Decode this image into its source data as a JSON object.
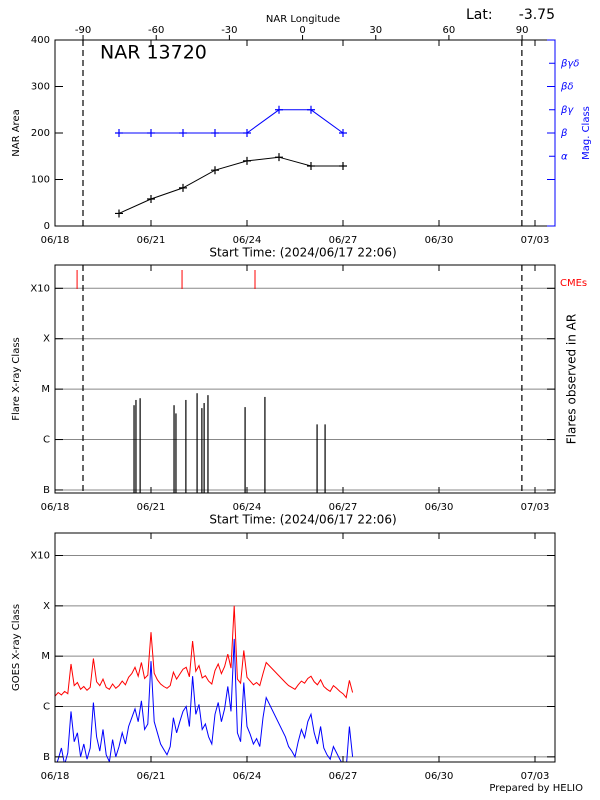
{
  "chart_data": [
    {
      "type": "line",
      "title": "NAR 13720",
      "subtitle": "Start Time: (2024/06/17 22:06)",
      "x2label": "NAR Longitude",
      "lat_label": "Lat:",
      "lat_value": -3.75,
      "ylabel": "NAR Area",
      "y2label": "Mag. Class",
      "y2color": "#0000ff",
      "marker": "+",
      "xlim": [
        0,
        15.625
      ],
      "xticks": [
        {
          "value": 0,
          "label": "06/18"
        },
        {
          "value": 3,
          "label": "06/21"
        },
        {
          "value": 6,
          "label": "06/24"
        },
        {
          "value": 9,
          "label": "06/27"
        },
        {
          "value": 12,
          "label": "06/30"
        },
        {
          "value": 15,
          "label": "07/03"
        }
      ],
      "x2lim": [
        -101.5,
        103.5
      ],
      "x2ticks": [
        -90,
        -60,
        -30,
        0,
        30,
        60,
        90
      ],
      "limb_x": [
        0.875,
        14.59
      ],
      "ylim": [
        0,
        400
      ],
      "yticks": [
        0,
        100,
        200,
        300,
        400
      ],
      "y2lim": [
        0,
        8
      ],
      "y2ticks": [
        {
          "value": 3,
          "label": "α"
        },
        {
          "value": 4,
          "label": "β"
        },
        {
          "value": 5,
          "label": "βγ"
        },
        {
          "value": 6,
          "label": "βδ"
        },
        {
          "value": 7,
          "label": "βγδ"
        }
      ],
      "grid": false,
      "series": [
        {
          "color": "#000000",
          "x": [
            2,
            3,
            4,
            5,
            6,
            7,
            8,
            9
          ],
          "values": [
            27,
            58,
            82,
            120,
            140,
            148,
            129,
            129
          ]
        },
        {
          "color": "#0000ff",
          "axis": "y2",
          "x": [
            2,
            3,
            4,
            5,
            6,
            7,
            8,
            9
          ],
          "values": [
            4,
            4,
            4,
            4,
            4,
            5,
            5,
            4
          ]
        }
      ]
    },
    {
      "type": "stem",
      "subtitle": "Start Time: (2024/06/17 22:06)",
      "ylabel": "Flare X-ray Class",
      "y2label": "Flares observed in AR",
      "log": true,
      "grid": true,
      "xlim": [
        0,
        15.625
      ],
      "xticks": [
        {
          "value": 0,
          "label": "06/18"
        },
        {
          "value": 3,
          "label": "06/21"
        },
        {
          "value": 6,
          "label": "06/24"
        },
        {
          "value": 9,
          "label": "06/27"
        },
        {
          "value": 12,
          "label": "06/30"
        },
        {
          "value": 15,
          "label": "07/03"
        }
      ],
      "limb_x": [
        0.875,
        14.59
      ],
      "ylim": [
        8.7e-08,
        0.0029
      ],
      "yticks": [
        {
          "value": 1e-07,
          "label": "B"
        },
        {
          "value": 1e-06,
          "label": "C"
        },
        {
          "value": 1e-05,
          "label": "M"
        },
        {
          "value": 0.0001,
          "label": "X"
        },
        {
          "value": 0.001,
          "label": "X10"
        }
      ],
      "series": [
        {
          "color": "#000000",
          "x": [
            2.47,
            2.53,
            2.66,
            3.72,
            3.78,
            4.09,
            4.44,
            4.59,
            4.66,
            4.78,
            5.94,
            6.56,
            8.19,
            8.44
          ],
          "values": [
            4.8e-06,
            6.1e-06,
            6.6e-06,
            4.8e-06,
            3.3e-06,
            6.1e-06,
            8.3e-06,
            4.2e-06,
            5.3e-06,
            7.6e-06,
            4.4e-06,
            7e-06,
            2e-06,
            2e-06
          ]
        }
      ],
      "cmes": {
        "name": "CMEs",
        "color": "#ff0000",
        "x": [
          0.69,
          3.97,
          6.25
        ]
      }
    },
    {
      "type": "line",
      "ylabel": "GOES X-ray Class",
      "footer": "Prepared by HELIO",
      "log": true,
      "grid": true,
      "xlim": [
        0,
        15.625
      ],
      "xticks": [
        {
          "value": 0,
          "label": "06/18"
        },
        {
          "value": 3,
          "label": "06/21"
        },
        {
          "value": 6,
          "label": "06/24"
        },
        {
          "value": 9,
          "label": "06/27"
        },
        {
          "value": 12,
          "label": "06/30"
        },
        {
          "value": 15,
          "label": "07/03"
        }
      ],
      "ylim": [
        7.9e-08,
        0.0028
      ],
      "yticks": [
        {
          "value": 1e-07,
          "label": "B"
        },
        {
          "value": 1e-06,
          "label": "C"
        },
        {
          "value": 1e-05,
          "label": "M"
        },
        {
          "value": 0.0001,
          "label": "X"
        },
        {
          "value": 0.001,
          "label": "X10"
        }
      ],
      "series": [
        {
          "color": "#0000ff",
          "x": [
            0.0,
            0.1,
            0.2,
            0.3,
            0.4,
            0.5,
            0.6,
            0.7,
            0.8,
            0.9,
            1.0,
            1.1,
            1.2,
            1.3,
            1.4,
            1.5,
            1.6,
            1.7,
            1.8,
            1.9,
            2.0,
            2.1,
            2.2,
            2.3,
            2.4,
            2.5,
            2.6,
            2.7,
            2.8,
            2.9,
            3.0,
            3.1,
            3.2,
            3.3,
            3.4,
            3.5,
            3.6,
            3.7,
            3.8,
            3.9,
            4.0,
            4.1,
            4.2,
            4.3,
            4.4,
            4.5,
            4.6,
            4.7,
            4.8,
            4.9,
            5.0,
            5.1,
            5.2,
            5.3,
            5.4,
            5.5,
            5.6,
            5.7,
            5.8,
            5.9,
            6.0,
            6.1,
            6.2,
            6.3,
            6.4,
            6.5,
            6.6,
            7.2,
            7.3,
            7.4,
            7.5,
            7.6,
            7.7,
            7.8,
            7.9,
            8.0,
            8.1,
            8.2,
            8.3,
            8.4,
            8.5,
            8.6,
            8.7,
            8.8,
            8.9,
            9.0,
            9.1,
            9.2,
            9.3
          ],
          "values": [
            6e-08,
            9e-08,
            1.5e-07,
            7e-08,
            1.2e-07,
            8e-07,
            2e-07,
            3e-07,
            1e-07,
            1.8e-07,
            9e-08,
            1.5e-07,
            1.2e-06,
            2.5e-07,
            1.3e-07,
            3.5e-07,
            1.1e-07,
            8e-08,
            2.2e-07,
            1e-07,
            1.6e-07,
            3e-07,
            1.8e-07,
            4e-07,
            6e-07,
            9e-07,
            5e-07,
            1.3e-06,
            3.5e-07,
            4.5e-07,
            8e-06,
            5e-07,
            3e-07,
            1.8e-07,
            1.4e-07,
            1.1e-07,
            1.6e-07,
            6e-07,
            3e-07,
            5e-07,
            8e-07,
            1e-06,
            4e-07,
            4e-06,
            7e-07,
            1.1e-06,
            3.5e-07,
            4.5e-07,
            2.5e-07,
            1.8e-07,
            7e-07,
            1.2e-06,
            5e-07,
            9e-07,
            2.5e-06,
            8e-07,
            2.2e-05,
            3e-07,
            2e-07,
            3e-06,
            4e-07,
            2.8e-07,
            1.8e-07,
            2.3e-07,
            1.6e-07,
            6e-07,
            1.5e-06,
            2.5e-07,
            1.6e-07,
            1.3e-07,
            1e-07,
            2e-07,
            3.5e-07,
            2.4e-07,
            5e-07,
            7e-07,
            3e-07,
            1.8e-07,
            4e-07,
            1.5e-07,
            1.1e-07,
            9e-08,
            1.6e-07,
            1.2e-07,
            9e-08,
            7e-08,
            6e-08,
            4e-07,
            1e-07
          ]
        },
        {
          "color": "#ff0000",
          "x": [
            0.0,
            0.1,
            0.2,
            0.3,
            0.4,
            0.5,
            0.6,
            0.7,
            0.8,
            0.9,
            1.0,
            1.1,
            1.2,
            1.3,
            1.4,
            1.5,
            1.6,
            1.7,
            1.8,
            1.9,
            2.0,
            2.1,
            2.2,
            2.3,
            2.4,
            2.5,
            2.6,
            2.7,
            2.8,
            2.9,
            3.0,
            3.1,
            3.2,
            3.3,
            3.4,
            3.5,
            3.6,
            3.7,
            3.8,
            3.9,
            4.0,
            4.1,
            4.2,
            4.3,
            4.4,
            4.5,
            4.6,
            4.7,
            4.8,
            4.9,
            5.0,
            5.1,
            5.2,
            5.3,
            5.4,
            5.5,
            5.6,
            5.7,
            5.8,
            5.9,
            6.0,
            6.1,
            6.2,
            6.3,
            6.4,
            6.5,
            6.6,
            7.2,
            7.3,
            7.4,
            7.5,
            7.6,
            7.7,
            7.8,
            7.9,
            8.0,
            8.1,
            8.2,
            8.3,
            8.4,
            8.5,
            8.6,
            8.7,
            8.8,
            8.9,
            9.0,
            9.1,
            9.2,
            9.3
          ],
          "values": [
            1.6e-06,
            1.9e-06,
            1.7e-06,
            2e-06,
            1.8e-06,
            7e-06,
            2.6e-06,
            3e-06,
            2.2e-06,
            2.5e-06,
            2.1e-06,
            2.4e-06,
            9e-06,
            3.1e-06,
            2.6e-06,
            3.5e-06,
            2.4e-06,
            2.2e-06,
            2.8e-06,
            2.3e-06,
            2.6e-06,
            3.2e-06,
            2.7e-06,
            3.8e-06,
            4.5e-06,
            6e-06,
            4e-06,
            7.5e-06,
            3.6e-06,
            4.2e-06,
            3e-05,
            4.6e-06,
            3.4e-06,
            2.8e-06,
            2.5e-06,
            2.3e-06,
            2.6e-06,
            4.8e-06,
            3.5e-06,
            4.4e-06,
            5.5e-06,
            6e-06,
            3.9e-06,
            2e-05,
            5e-06,
            6.5e-06,
            3.7e-06,
            4.1e-06,
            3.2e-06,
            2.8e-06,
            5.2e-06,
            7e-06,
            4.5e-06,
            6.2e-06,
            1.1e-05,
            5.8e-06,
            0.0001,
            3.5e-06,
            2.9e-06,
            1.3e-05,
            3.8e-06,
            3.2e-06,
            2.7e-06,
            3e-06,
            2.6e-06,
            4.5e-06,
            7.5e-06,
            3e-06,
            2.6e-06,
            2.4e-06,
            2.2e-06,
            2.7e-06,
            3.2e-06,
            2.9e-06,
            3.6e-06,
            4e-06,
            3.1e-06,
            2.7e-06,
            3.4e-06,
            2.5e-06,
            2.2e-06,
            2e-06,
            2.6e-06,
            2.3e-06,
            2e-06,
            1.8e-06,
            1.5e-06,
            3.3e-06,
            1.9e-06
          ]
        }
      ]
    }
  ]
}
